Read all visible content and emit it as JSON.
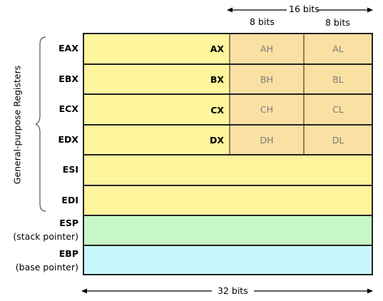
{
  "header": {
    "bits16": "16 bits",
    "bits8_high": "8 bits",
    "bits8_low": "8 bits"
  },
  "footer": {
    "bits32": "32 bits"
  },
  "group_label": "General-purpose Registers",
  "registers": [
    {
      "name": "EAX",
      "sub16": "AX",
      "high": "AH",
      "low": "AL"
    },
    {
      "name": "EBX",
      "sub16": "BX",
      "high": "BH",
      "low": "BL"
    },
    {
      "name": "ECX",
      "sub16": "CX",
      "high": "CH",
      "low": "CL"
    },
    {
      "name": "EDX",
      "sub16": "DX",
      "high": "DH",
      "low": "DL"
    },
    {
      "name": "ESI"
    },
    {
      "name": "EDI"
    },
    {
      "name": "ESP",
      "desc": "(stack pointer)"
    },
    {
      "name": "EBP",
      "desc": "(base pointer)"
    }
  ],
  "colors": {
    "general": "#fff59d",
    "byte": "#fbe0a3",
    "esp": "#c7f7c7",
    "ebp": "#c9f7fb"
  }
}
